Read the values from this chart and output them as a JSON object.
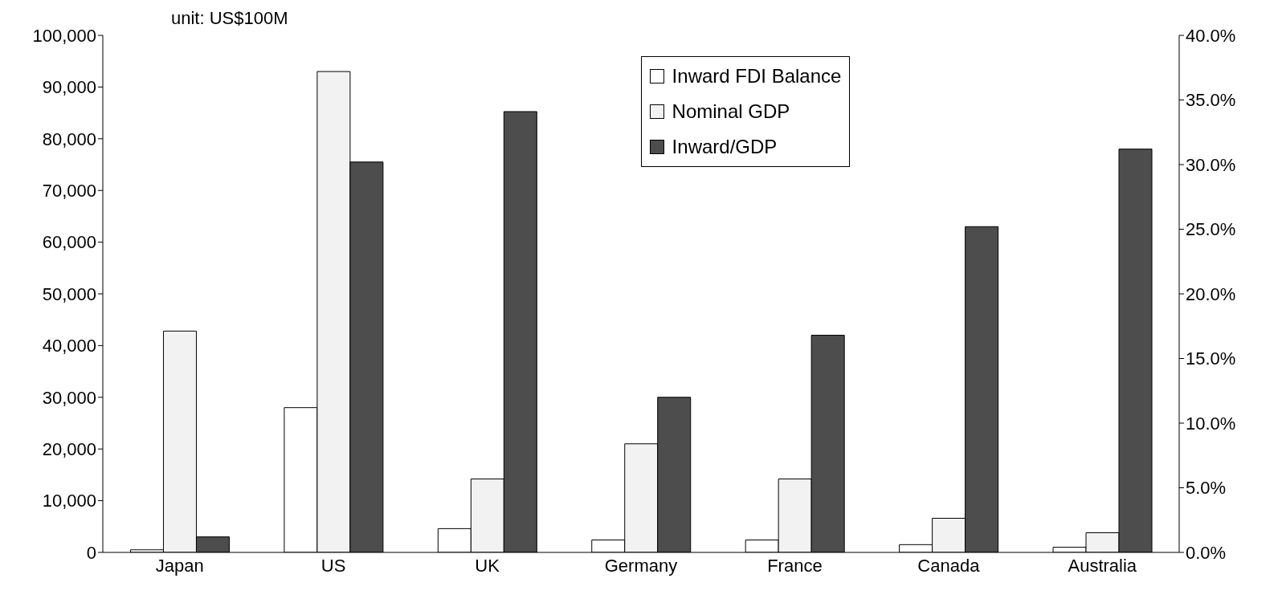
{
  "chart_data": {
    "type": "bar",
    "annotations": [
      "unit: US$100M"
    ],
    "categories": [
      "Japan",
      "US",
      "UK",
      "Germany",
      "France",
      "Canada",
      "Australia"
    ],
    "series": [
      {
        "name": "Inward FDI Balance",
        "color": "#ffffff",
        "values": [
          500,
          28000,
          4600,
          2400,
          2400,
          1500,
          1000
        ]
      },
      {
        "name": "Nominal GDP",
        "color": "#f2f2f2",
        "values": [
          42800,
          93000,
          14200,
          21000,
          14200,
          6600,
          3800
        ]
      },
      {
        "name": "Inward/GDP",
        "color": "#4d4d4d",
        "axis": "y2",
        "values": [
          1.2,
          30.2,
          34.1,
          12.0,
          16.8,
          25.2,
          31.2
        ]
      }
    ],
    "ylim": [
      0,
      100000
    ],
    "yticks": [
      0,
      {
        "value": 10000,
        "label": "10,000"
      },
      {
        "value": 20000,
        "label": "20,000"
      },
      {
        "value": 30000,
        "label": "30,000"
      },
      {
        "value": 40000,
        "label": "40,000"
      },
      {
        "value": 50000,
        "label": "50,000"
      },
      {
        "value": 60000,
        "label": "60,000"
      },
      {
        "value": 70000,
        "label": "70,000"
      },
      {
        "value": 80000,
        "label": "80,000"
      },
      {
        "value": 90000,
        "label": "90,000"
      },
      {
        "value": 100000,
        "label": "100,000"
      }
    ],
    "y2lim": [
      0,
      40
    ],
    "y2ticks": [
      {
        "value": 0,
        "label": "0.0%"
      },
      {
        "value": 5,
        "label": "5.0%"
      },
      {
        "value": 10,
        "label": "10.0%"
      },
      {
        "value": 15,
        "label": "15.0%"
      },
      {
        "value": 20,
        "label": "20.0%"
      },
      {
        "value": 25,
        "label": "25.0%"
      },
      {
        "value": 30,
        "label": "30.0%"
      },
      {
        "value": 35,
        "label": "35.0%"
      },
      {
        "value": 40,
        "label": "40.0%"
      }
    ],
    "grid": false,
    "legend": "top"
  }
}
